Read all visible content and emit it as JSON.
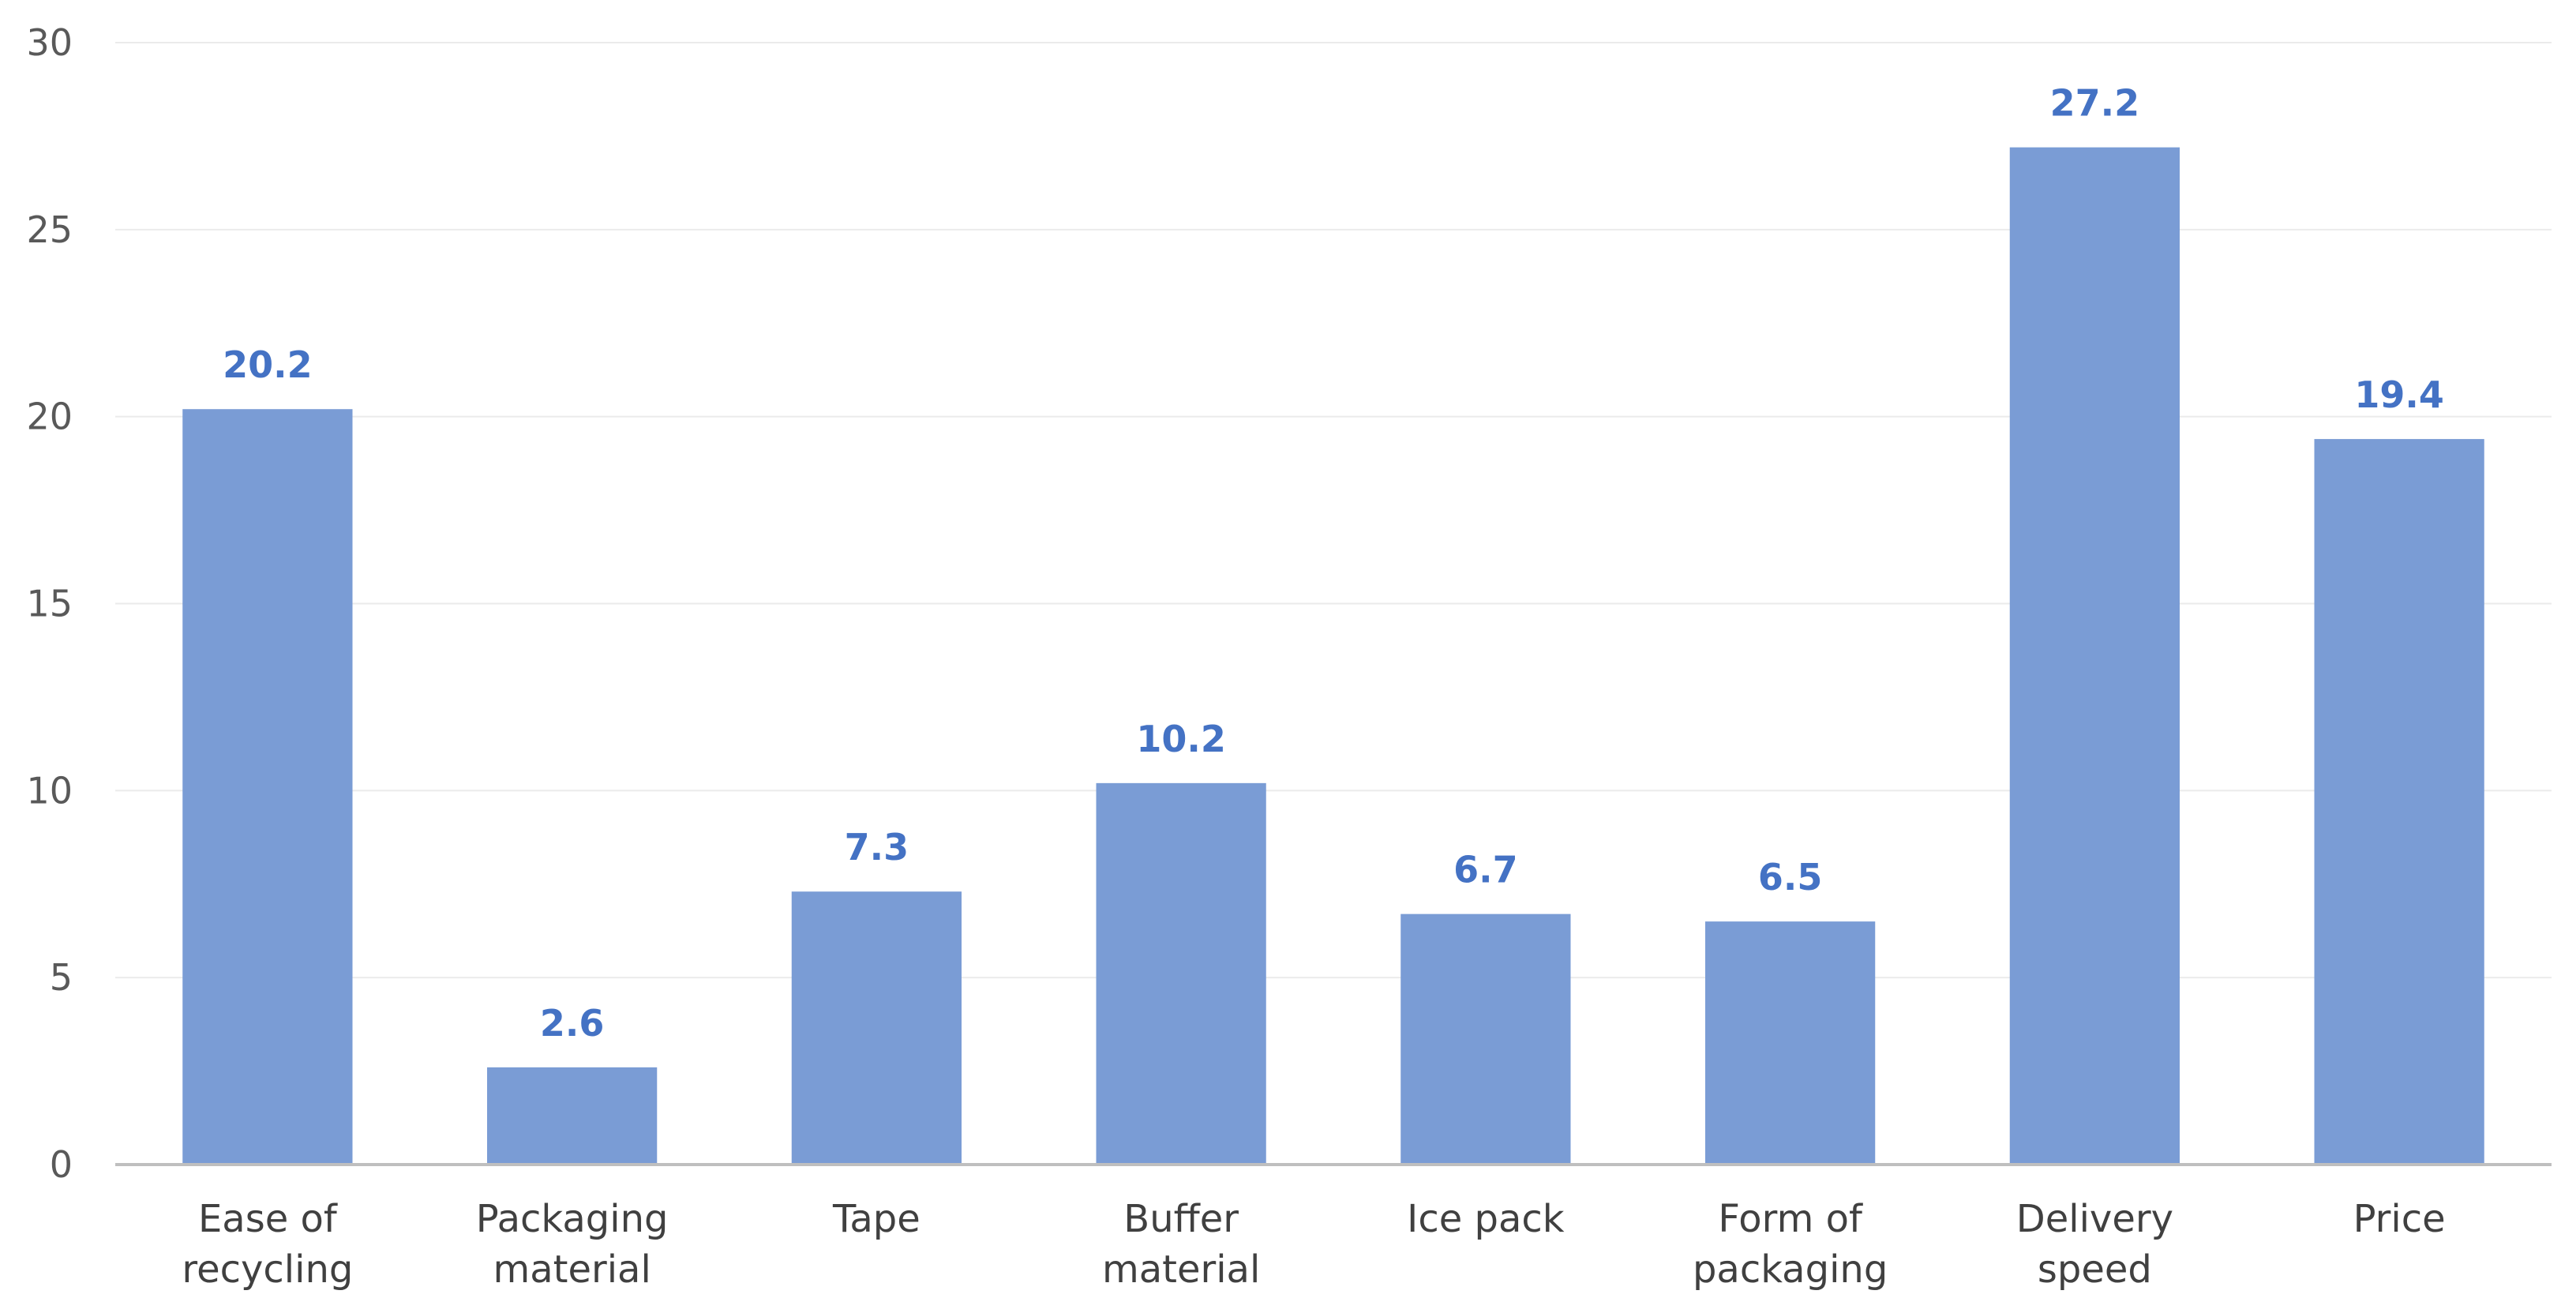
{
  "chart_data": {
    "type": "bar",
    "title": "",
    "xlabel": "",
    "ylabel": "",
    "categories": [
      [
        "Ease of",
        "recycling"
      ],
      [
        "Packaging",
        "material"
      ],
      [
        "Tape"
      ],
      [
        "Buffer",
        "material"
      ],
      [
        "Ice pack"
      ],
      [
        "Form of",
        "packaging"
      ],
      [
        "Delivery",
        "speed"
      ],
      [
        "Price"
      ]
    ],
    "values": [
      20.2,
      2.6,
      7.3,
      10.2,
      6.7,
      6.5,
      27.2,
      19.4
    ],
    "data_labels": [
      "20.2",
      "2.6",
      "7.3",
      "10.2",
      "6.7",
      "6.5",
      "27.2",
      "19.4"
    ],
    "y_ticks": [
      0,
      5,
      10,
      15,
      20,
      25,
      30
    ],
    "ylim": [
      0,
      30
    ],
    "grid": true,
    "legend": "none",
    "colors": {
      "bar": "#7A9CD5",
      "data_label": "#4472C4",
      "grid": "#EBEBEB",
      "axis": "#BFBFBF"
    }
  }
}
